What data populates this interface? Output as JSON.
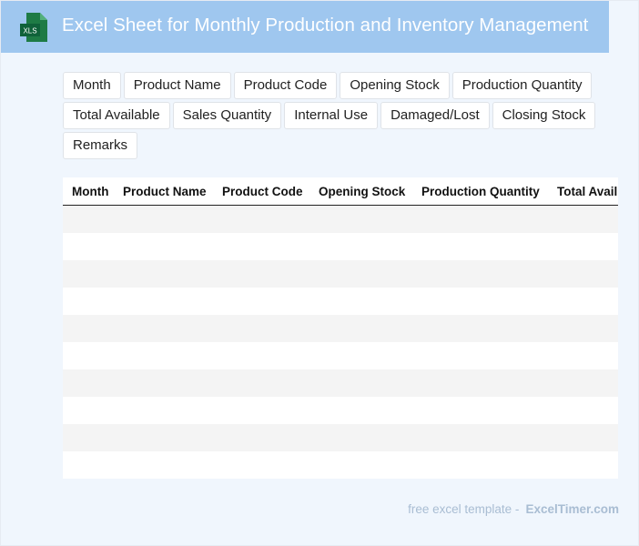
{
  "header": {
    "title": "Excel Sheet for Monthly Production and Inventory Management",
    "icon": "xls-file-icon",
    "icon_label": "XLS",
    "bg_color": "#9fc7ef"
  },
  "chips": [
    {
      "label": "Month"
    },
    {
      "label": "Product Name"
    },
    {
      "label": "Product Code"
    },
    {
      "label": "Opening Stock"
    },
    {
      "label": "Production Quantity"
    },
    {
      "label": "Total Available"
    },
    {
      "label": "Sales Quantity"
    },
    {
      "label": "Internal Use"
    },
    {
      "label": "Damaged/Lost"
    },
    {
      "label": "Closing Stock"
    },
    {
      "label": "Remarks"
    }
  ],
  "table": {
    "headers": [
      "Month",
      "Product Name",
      "Product Code",
      "Opening Stock",
      "Production Quantity",
      "Total Avail"
    ],
    "rows": [
      [],
      [],
      [],
      [],
      [],
      [],
      [],
      [],
      [],
      [],
      []
    ]
  },
  "footer": {
    "text": "free excel template -",
    "brand": "ExcelTimer.com"
  }
}
